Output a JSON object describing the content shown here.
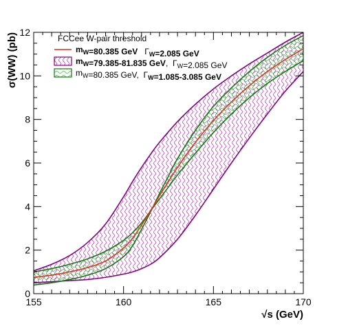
{
  "chart_data": {
    "type": "line",
    "xlabel": "√s (GeV)",
    "ylabel": "σ(WW) (pb)",
    "xlim": [
      155,
      170
    ],
    "ylim": [
      0,
      12
    ],
    "xticks": [
      155,
      160,
      165,
      170
    ],
    "yticks": [
      0,
      2,
      4,
      6,
      8,
      10,
      12
    ],
    "grid": false,
    "legend_position": "top-left",
    "legend": {
      "title": "FCCee W-pair threshold",
      "entries": [
        {
          "key": "central",
          "parts": [
            {
              "text": "m",
              "bold": true
            },
            {
              "text": "W",
              "bold": true,
              "sub": true
            },
            {
              "text": "=80.385 GeV   ",
              "bold": true
            },
            {
              "text": "Γ",
              "bold": false
            },
            {
              "text": "W",
              "bold": true,
              "sub": true
            },
            {
              "text": "=2.085 GeV",
              "bold": true
            }
          ]
        },
        {
          "key": "mass_band",
          "parts": [
            {
              "text": "m",
              "bold": true
            },
            {
              "text": "W",
              "bold": true,
              "sub": true
            },
            {
              "text": "=79.385-81.835 GeV",
              "bold": true
            },
            {
              "text": ",  Γ",
              "bold": false
            },
            {
              "text": "W",
              "bold": false,
              "sub": true
            },
            {
              "text": "=2.085 GeV",
              "bold": false
            }
          ]
        },
        {
          "key": "width_band",
          "parts": [
            {
              "text": "m",
              "bold": false
            },
            {
              "text": "W",
              "bold": false,
              "sub": true
            },
            {
              "text": "=80.385 GeV,  ",
              "bold": false
            },
            {
              "text": "Γ",
              "bold": false
            },
            {
              "text": "W",
              "bold": true,
              "sub": true
            },
            {
              "text": "=1.085-3.085 GeV",
              "bold": true
            }
          ]
        }
      ]
    },
    "series": [
      {
        "key": "central",
        "style": "line",
        "color": "#e0301e",
        "x": [
          155,
          156,
          157,
          158,
          159,
          160,
          160.5,
          161,
          161.5,
          162,
          162.5,
          163,
          164,
          165,
          166,
          167,
          168,
          169,
          170
        ],
        "y": [
          0.75,
          0.85,
          1.0,
          1.2,
          1.5,
          2.1,
          2.55,
          3.15,
          3.8,
          4.5,
          5.15,
          5.8,
          6.95,
          7.95,
          8.8,
          9.55,
          10.2,
          10.75,
          11.25
        ]
      },
      {
        "key": "mass_band",
        "style": "band",
        "color": "#800080",
        "fill": "#e000e0",
        "x": [
          155,
          156,
          157,
          158,
          159,
          160,
          160.5,
          161,
          161.5,
          162,
          163,
          164,
          165,
          166,
          167,
          168,
          169,
          170
        ],
        "y_high": [
          1.05,
          1.35,
          1.75,
          2.35,
          3.2,
          4.45,
          5.15,
          5.8,
          6.4,
          6.95,
          7.9,
          8.7,
          9.4,
          10.0,
          10.55,
          11.05,
          11.55,
          12.0
        ],
        "y_low": [
          0.5,
          0.55,
          0.6,
          0.65,
          0.75,
          0.9,
          1.0,
          1.15,
          1.35,
          1.65,
          2.5,
          3.6,
          4.8,
          6.0,
          7.15,
          8.25,
          9.3,
          10.2
        ]
      },
      {
        "key": "width_band",
        "style": "band",
        "color": "#107810",
        "fill": "#33bb33",
        "x": [
          155,
          156,
          157,
          158,
          159,
          160,
          160.5,
          161,
          161.5,
          162,
          162.5,
          163,
          164,
          165,
          166,
          167,
          168,
          169,
          170
        ],
        "y_a": [
          1.0,
          1.15,
          1.35,
          1.6,
          1.95,
          2.45,
          2.8,
          3.25,
          3.8,
          4.35,
          4.9,
          5.45,
          6.45,
          7.4,
          8.25,
          9.0,
          9.65,
          10.2,
          10.7
        ],
        "y_b": [
          0.4,
          0.5,
          0.65,
          0.85,
          1.15,
          1.7,
          2.2,
          2.95,
          3.75,
          4.6,
          5.4,
          6.2,
          7.5,
          8.6,
          9.45,
          10.2,
          10.85,
          11.4,
          11.85
        ]
      }
    ]
  }
}
